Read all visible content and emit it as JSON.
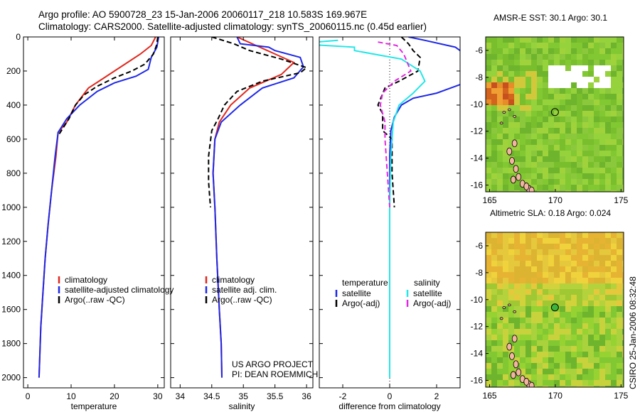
{
  "header": {
    "line1": "Argo profile: AO 5900728_23 15-Jan-2006 20060117_218 10.583S 169.967E",
    "line2": "Climatology: CARS2000. Satellite-adjusted climatology: synTS_20060115.nc (0.45d earlier)"
  },
  "credits": {
    "project": "US ARGO PROJECT",
    "pi": "PI: DEAN ROEMMICH",
    "stamp": "CSIRO 25-Jan-2006 08:32:48"
  },
  "colors": {
    "red": "#e0281e",
    "blue": "#1e28e6",
    "black": "#000000",
    "cyan": "#24e6e6",
    "magenta": "#e028e0"
  },
  "chart_data": [
    {
      "type": "line",
      "xlabel": "temperature",
      "ylabel": "",
      "xlim": [
        -1,
        31.5
      ],
      "ylim": [
        0,
        2060
      ],
      "y_inverted": true,
      "xticks": [
        0,
        10,
        20,
        30
      ],
      "yticks": [
        0,
        200,
        400,
        600,
        800,
        1000,
        1200,
        1400,
        1600,
        1800,
        2000
      ],
      "legend": [
        "climatology",
        "satellite-adjusted climatology",
        "Argo(..raw -QC)"
      ],
      "series": [
        {
          "name": "climatology",
          "color": "red",
          "dash": false,
          "points": [
            [
              29.5,
              0
            ],
            [
              28.5,
              50
            ],
            [
              26,
              100
            ],
            [
              23,
              150
            ],
            [
              20,
              200
            ],
            [
              17,
              250
            ],
            [
              14,
              300
            ],
            [
              11,
              400
            ],
            [
              9,
              500
            ],
            [
              7,
              560
            ],
            [
              6.5,
              700
            ],
            [
              5.5,
              900
            ],
            [
              4.7,
              1100
            ],
            [
              4,
              1300
            ],
            [
              3.5,
              1500
            ],
            [
              3,
              1700
            ],
            [
              2.6,
              2000
            ]
          ]
        },
        {
          "name": "satellite-adjusted climatology",
          "color": "blue",
          "dash": false,
          "points": [
            [
              30.2,
              0
            ],
            [
              29.8,
              60
            ],
            [
              28.5,
              120
            ],
            [
              27.8,
              190
            ],
            [
              25,
              230
            ],
            [
              20,
              270
            ],
            [
              16,
              320
            ],
            [
              12,
              400
            ],
            [
              9,
              480
            ],
            [
              7.5,
              540
            ],
            [
              7,
              560
            ],
            [
              6.3,
              700
            ],
            [
              5.5,
              900
            ],
            [
              4.7,
              1100
            ],
            [
              4,
              1300
            ],
            [
              3.5,
              1500
            ],
            [
              3,
              1700
            ],
            [
              2.6,
              2000
            ]
          ]
        },
        {
          "name": "Argo(..raw -QC)",
          "color": "black",
          "dash": true,
          "points": [
            [
              30,
              0
            ],
            [
              29.7,
              50
            ],
            [
              29,
              100
            ],
            [
              27,
              160
            ],
            [
              24,
              200
            ],
            [
              20,
              240
            ],
            [
              16,
              290
            ],
            [
              13,
              340
            ],
            [
              11,
              400
            ],
            [
              9.5,
              480
            ],
            [
              8,
              540
            ],
            [
              7,
              580
            ]
          ]
        }
      ]
    },
    {
      "type": "line",
      "xlabel": "salinity",
      "ylabel": "",
      "xlim": [
        33.85,
        36.1
      ],
      "ylim": [
        0,
        2060
      ],
      "y_inverted": true,
      "xticks": [
        34,
        34.5,
        35,
        35.5,
        36
      ],
      "legend": [
        "climatology",
        "satellite adj. clim.",
        "Argo(..raw -QC)"
      ],
      "series": [
        {
          "name": "climatology",
          "color": "red",
          "dash": false,
          "points": [
            [
              34.9,
              0
            ],
            [
              35.2,
              50
            ],
            [
              35.5,
              100
            ],
            [
              35.8,
              150
            ],
            [
              35.6,
              220
            ],
            [
              35.1,
              300
            ],
            [
              34.8,
              400
            ],
            [
              34.62,
              500
            ],
            [
              34.55,
              600
            ],
            [
              34.52,
              800
            ],
            [
              34.55,
              1000
            ],
            [
              34.58,
              1300
            ],
            [
              34.62,
              1600
            ],
            [
              34.65,
              1800
            ],
            [
              34.66,
              2000
            ]
          ]
        },
        {
          "name": "satellite adj. clim.",
          "color": "blue",
          "dash": false,
          "points": [
            [
              34.9,
              0
            ],
            [
              34.95,
              40
            ],
            [
              35.4,
              60
            ],
            [
              35.5,
              80
            ],
            [
              35.9,
              120
            ],
            [
              35.95,
              175
            ],
            [
              35.8,
              240
            ],
            [
              35.3,
              300
            ],
            [
              34.95,
              400
            ],
            [
              34.65,
              500
            ],
            [
              34.55,
              600
            ],
            [
              34.52,
              800
            ],
            [
              34.55,
              1000
            ],
            [
              34.58,
              1300
            ],
            [
              34.62,
              1600
            ],
            [
              34.65,
              1800
            ],
            [
              34.66,
              2000
            ]
          ]
        },
        {
          "name": "Argo(..raw -QC)",
          "color": "black",
          "dash": true,
          "points": [
            [
              34.5,
              0
            ],
            [
              34.85,
              40
            ],
            [
              35.1,
              80
            ],
            [
              35.6,
              130
            ],
            [
              36.0,
              180
            ],
            [
              35.9,
              210
            ],
            [
              35.3,
              260
            ],
            [
              34.9,
              320
            ],
            [
              34.7,
              400
            ],
            [
              34.6,
              480
            ],
            [
              34.5,
              550
            ],
            [
              34.45,
              700
            ],
            [
              34.45,
              850
            ],
            [
              34.48,
              1000
            ]
          ]
        }
      ]
    },
    {
      "type": "line",
      "xlabel": "difference from climatology",
      "ylabel": "",
      "xlim": [
        -3,
        3
      ],
      "ylim": [
        0,
        2060
      ],
      "y_inverted": true,
      "xticks": [
        -2,
        0,
        2
      ],
      "legend_left_title": "temperature",
      "legend_right_title": "salinity",
      "legend": [
        "satellite",
        "Argo(-adj)",
        "satellite",
        "Argo(-adj)"
      ],
      "series": [
        {
          "name": "temperature satellite",
          "color": "blue",
          "dash": false,
          "points": [
            [
              0.8,
              0
            ],
            [
              1.5,
              20
            ],
            [
              2.8,
              60
            ],
            [
              3,
              80
            ]
          ]
        },
        {
          "name": "temperature satellite deep",
          "color": "blue",
          "dash": false,
          "points": [
            [
              3,
              280
            ],
            [
              2,
              330
            ],
            [
              1,
              360
            ],
            [
              0.5,
              400
            ],
            [
              0.2,
              470
            ],
            [
              0.05,
              550
            ],
            [
              0,
              700
            ],
            [
              0,
              900
            ],
            [
              0,
              1100
            ],
            [
              0,
              1500
            ],
            [
              0,
              2000
            ]
          ]
        },
        {
          "name": "temperature Argo(-adj)",
          "color": "black",
          "dash": true,
          "points": [
            [
              0.5,
              0
            ],
            [
              0.8,
              40
            ],
            [
              1,
              80
            ],
            [
              1.3,
              120
            ],
            [
              1.2,
              200
            ],
            [
              0.4,
              260
            ],
            [
              -0.2,
              300
            ],
            [
              -0.5,
              400
            ],
            [
              -0.3,
              450
            ],
            [
              -0.3,
              550
            ],
            [
              0.1,
              600
            ],
            [
              0.1,
              800
            ],
            [
              0.2,
              1000
            ]
          ]
        },
        {
          "name": "salinity satellite",
          "color": "cyan",
          "dash": false,
          "points": [
            [
              -2.2,
              20
            ],
            [
              -4,
              40
            ],
            [
              -1.5,
              60
            ],
            [
              -1.5,
              80
            ],
            [
              0.5,
              130
            ],
            [
              1.3,
              200
            ],
            [
              1.5,
              260
            ],
            [
              1,
              330
            ],
            [
              0.4,
              400
            ],
            [
              0.15,
              500
            ],
            [
              0.05,
              700
            ],
            [
              0,
              1000
            ],
            [
              0,
              1500
            ],
            [
              0,
              2000
            ]
          ]
        },
        {
          "name": "salinity Argo(-adj)",
          "color": "magenta",
          "dash": true,
          "points": [
            [
              -0.5,
              30
            ],
            [
              0.3,
              50
            ],
            [
              0.6,
              100
            ],
            [
              0.9,
              200
            ],
            [
              0.2,
              260
            ],
            [
              -0.3,
              330
            ],
            [
              -0.4,
              400
            ],
            [
              -0.2,
              500
            ],
            [
              -0.2,
              600
            ],
            [
              -0.1,
              800
            ],
            [
              0,
              1000
            ]
          ]
        }
      ]
    }
  ],
  "maps": [
    {
      "title": "AMSR-E SST: 30.1 Argo: 30.1",
      "xlim": [
        164.7,
        175.2
      ],
      "ylim": [
        -16.5,
        -5
      ],
      "xticks": [
        165,
        170,
        175
      ],
      "yticks": [
        -6,
        -8,
        -10,
        -12,
        -14,
        -16
      ],
      "marker": {
        "lon": 169.97,
        "lat": -10.58,
        "filled": false
      },
      "base_color": "#8ed230"
    },
    {
      "title": "Altimetric SLA: 0.18 Argo: 0.024",
      "xlim": [
        164.7,
        175.2
      ],
      "ylim": [
        -16.5,
        -5
      ],
      "xticks": [
        165,
        170,
        175
      ],
      "yticks": [
        -6,
        -8,
        -10,
        -12,
        -14,
        -16
      ],
      "marker": {
        "lon": 169.97,
        "lat": -10.58,
        "filled": true
      },
      "base_color": "#e8c83c"
    }
  ]
}
